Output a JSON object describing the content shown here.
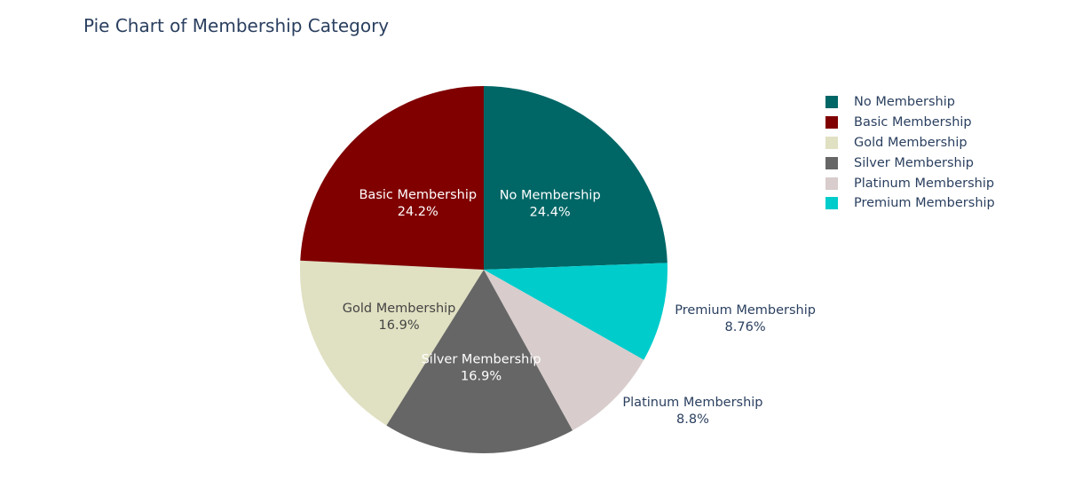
{
  "chart_data": {
    "type": "pie",
    "title": "Pie Chart of Membership Category",
    "legend_position": "right",
    "slices": [
      {
        "label": "No Membership",
        "percent_label": "24.4%",
        "value": 24.4,
        "color": "#006666",
        "text_color": "#ffffff",
        "text_position": "inside"
      },
      {
        "label": "Premium Membership",
        "percent_label": "8.76%",
        "value": 8.76,
        "color": "#00cccc",
        "text_color": "#2a3f5f",
        "text_position": "outside"
      },
      {
        "label": "Platinum Membership",
        "percent_label": "8.8%",
        "value": 8.8,
        "color": "#d8cccc",
        "text_color": "#2a3f5f",
        "text_position": "outside"
      },
      {
        "label": "Silver Membership",
        "percent_label": "16.9%",
        "value": 16.9,
        "color": "#666666",
        "text_color": "#ffffff",
        "text_position": "inside"
      },
      {
        "label": "Gold Membership",
        "percent_label": "16.9%",
        "value": 16.9,
        "color": "#e0e0c2",
        "text_color": "#444444",
        "text_position": "inside"
      },
      {
        "label": "Basic Membership",
        "percent_label": "24.2%",
        "value": 24.2,
        "color": "#800000",
        "text_color": "#ffffff",
        "text_position": "inside"
      }
    ],
    "legend": [
      {
        "label": "No Membership",
        "color": "#006666"
      },
      {
        "label": "Basic Membership",
        "color": "#800000"
      },
      {
        "label": "Gold Membership",
        "color": "#e0e0c2"
      },
      {
        "label": "Silver Membership",
        "color": "#666666"
      },
      {
        "label": "Platinum Membership",
        "color": "#d8cccc"
      },
      {
        "label": "Premium Membership",
        "color": "#00cccc"
      }
    ]
  }
}
